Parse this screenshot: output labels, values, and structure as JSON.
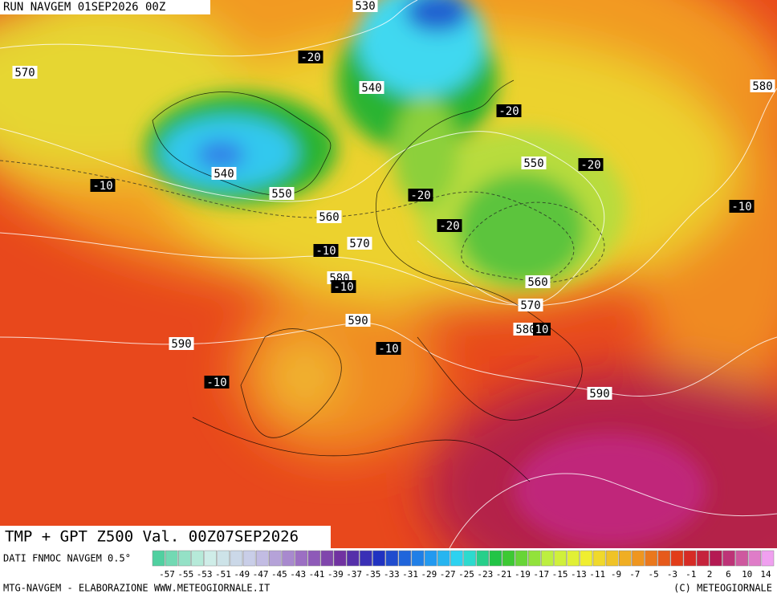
{
  "header": {
    "run": "RUN NAVGEM 01SEP2026 00Z"
  },
  "map": {
    "contour_labels": [
      "530",
      "-20",
      "570",
      "540",
      "-20",
      "580",
      "540",
      "550",
      "-10",
      "550",
      "-20",
      "-20",
      "-10",
      "560",
      "-20",
      "570",
      "-10",
      "580",
      "-10",
      "560",
      "570",
      "590",
      "580",
      "10",
      "590",
      "-10",
      "-10",
      "590"
    ]
  },
  "title": "TMP + GPT Z500 Val. 00Z07SEP2026",
  "source": "DATI FNMOC NAVGEM 0.5°",
  "color_scale": {
    "labels": [
      -57,
      -55,
      -53,
      -51,
      -49,
      -47,
      -45,
      -43,
      -41,
      -39,
      -37,
      -35,
      -33,
      -31,
      -29,
      -27,
      -25,
      -23,
      -21,
      -19,
      -17,
      -15,
      -13,
      -11,
      -9,
      -7,
      -5,
      -3,
      -1,
      2,
      6,
      10,
      14
    ]
  },
  "footer": {
    "left": "MTG-NAVGEM - ELABORAZIONE WWW.METEOGIORNALE.IT",
    "right": "(C) METEOGIORNALE"
  }
}
